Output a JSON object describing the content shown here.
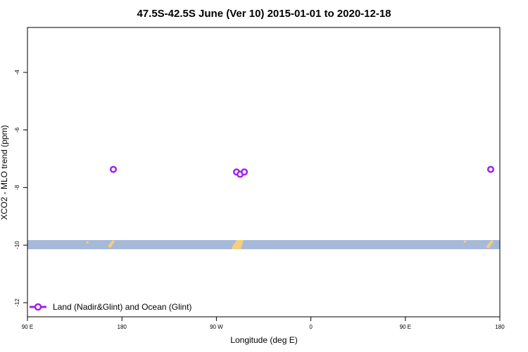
{
  "chart_data": {
    "type": "scatter",
    "title": "47.5S-42.5S June (Ver 10)   2015-01-01 to 2020-12-18",
    "x_label": "Longitude (deg E)",
    "y_label": "XCO2 - MLO trend (ppm)",
    "x": [
      171.8,
      289.2,
      292.6,
      296.6,
      531.3
    ],
    "series": [
      {
        "name": "Land (Nadir&Glint) and Ocean (Glint)",
        "color": "#a020f0",
        "values": [
          -7.37,
          -7.46,
          -7.54,
          -7.46,
          -7.37
        ]
      }
    ],
    "xlim": [
      90,
      540
    ],
    "xticks": [
      {
        "value": 90,
        "label": "90 E"
      },
      {
        "value": 180,
        "label": "180"
      },
      {
        "value": 270,
        "label": "90 W"
      },
      {
        "value": 360,
        "label": "0"
      },
      {
        "value": 450,
        "label": "90 E"
      },
      {
        "value": 540,
        "label": "180"
      }
    ],
    "ylim": [
      -12.49,
      -2.44
    ],
    "yticks": [
      -12,
      -10,
      -8,
      -6,
      -4
    ],
    "legend": "bottom-left"
  }
}
